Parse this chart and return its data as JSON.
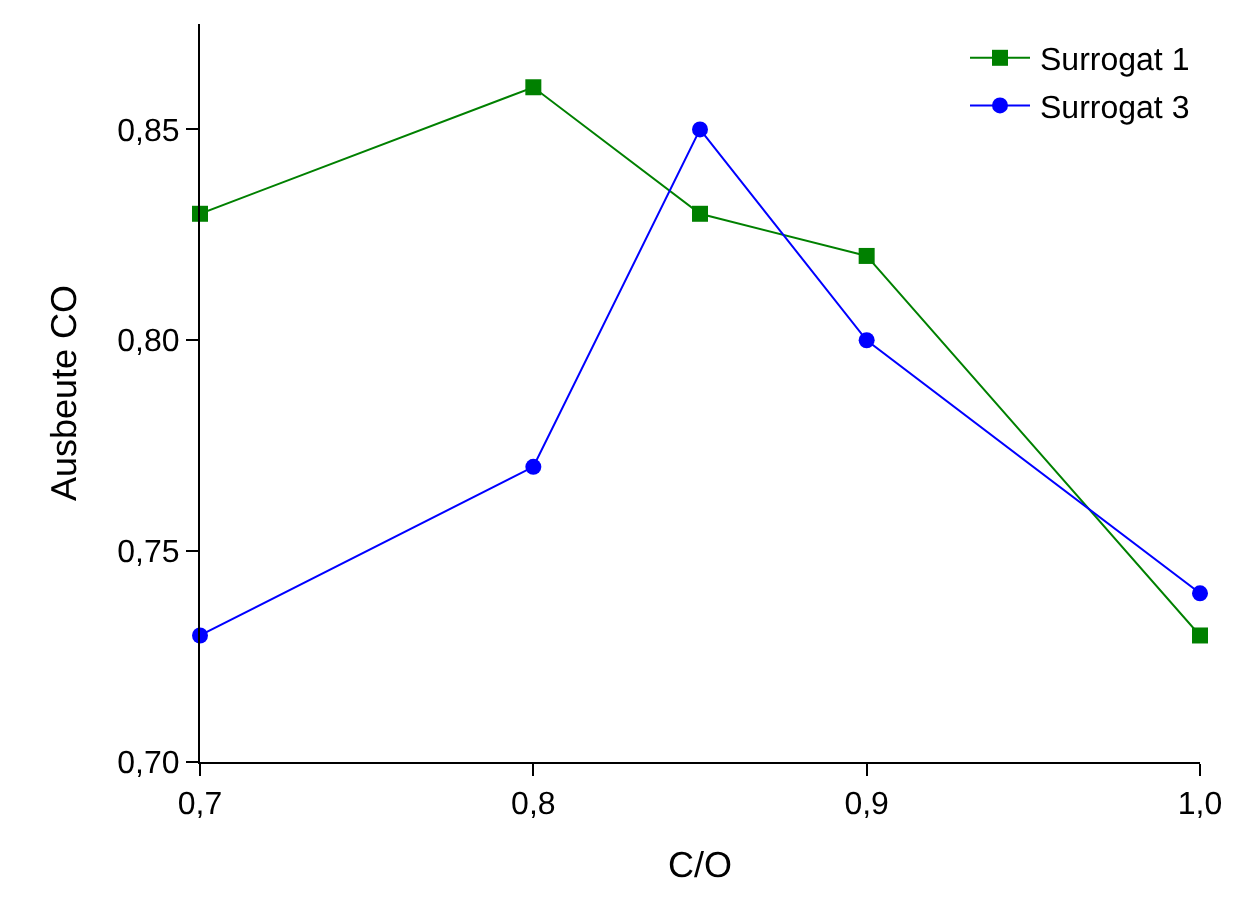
{
  "chart_data": {
    "type": "line",
    "xlabel": "C/O",
    "ylabel": "Ausbeute CO",
    "x": [
      0.7,
      0.8,
      0.85,
      0.9,
      1.0
    ],
    "series": [
      {
        "name": "Surrogat 1",
        "color": "#008000",
        "marker": "square",
        "values": [
          0.83,
          0.86,
          0.83,
          0.82,
          0.73
        ]
      },
      {
        "name": "Surrogat 3",
        "color": "#0000ff",
        "marker": "circle",
        "values": [
          0.73,
          0.77,
          0.85,
          0.8,
          0.74
        ]
      }
    ],
    "xlim": [
      0.7,
      1.0
    ],
    "ylim": [
      0.7,
      0.875
    ],
    "xticks": [
      {
        "value": 0.7,
        "label": "0,7"
      },
      {
        "value": 0.8,
        "label": "0,8"
      },
      {
        "value": 0.9,
        "label": "0,9"
      },
      {
        "value": 1.0,
        "label": "1,0"
      }
    ],
    "yticks": [
      {
        "value": 0.7,
        "label": "0,70"
      },
      {
        "value": 0.75,
        "label": "0,75"
      },
      {
        "value": 0.8,
        "label": "0,80"
      },
      {
        "value": 0.85,
        "label": "0,85"
      }
    ],
    "legend": "top right"
  }
}
